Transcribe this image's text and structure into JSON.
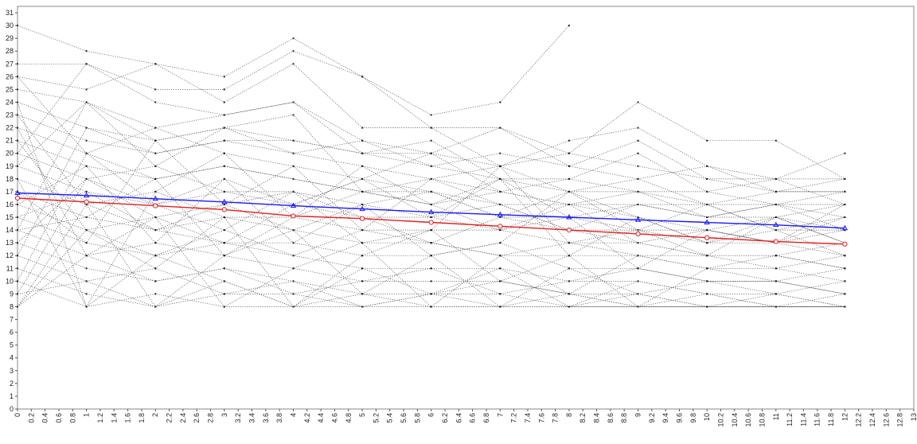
{
  "chart_data": {
    "type": "line",
    "title": "",
    "xlabel": "",
    "ylabel": "",
    "xlim": [
      0,
      13
    ],
    "ylim": [
      0,
      31.5
    ],
    "grid": false,
    "legend": "none",
    "y_ticks": [
      "0",
      "1",
      "2",
      "3",
      "4",
      "5",
      "6",
      "7",
      "8",
      "9",
      "10",
      "11",
      "12",
      "13",
      "14",
      "15",
      "16",
      "17",
      "18",
      "19",
      "20",
      "21",
      "22",
      "23",
      "24",
      "25",
      "26",
      "27",
      "28",
      "29",
      "30",
      "31"
    ],
    "x_ticks": [
      "0",
      "0.2",
      "0.4",
      "0.6",
      "0.8",
      "1",
      "1.2",
      "1.4",
      "1.6",
      "1.8",
      "2",
      "2.2",
      "2.4",
      "2.6",
      "2.8",
      "3",
      "3.2",
      "3.4",
      "3.6",
      "3.8",
      "4",
      "4.2",
      "4.4",
      "4.6",
      "4.8",
      "5",
      "5.2",
      "5.4",
      "5.6",
      "5.8",
      "6",
      "6.2",
      "6.4",
      "6.6",
      "6.8",
      "7",
      "7.2",
      "7.4",
      "7.6",
      "7.8",
      "8",
      "8.2",
      "8.4",
      "8.6",
      "8.8",
      "9",
      "9.2",
      "9.4",
      "9.6",
      "9.8",
      "10",
      "10.2",
      "10.4",
      "10.6",
      "10.8",
      "11",
      "11.2",
      "11.4",
      "11.6",
      "11.8",
      "12",
      "12.2",
      "12.4",
      "12.6",
      "12.8",
      "13"
    ],
    "trend_series": [
      {
        "color": "#1a1aff",
        "marker": "triangle",
        "x": [
          0,
          1,
          2,
          3,
          4,
          5,
          6,
          7,
          8,
          9,
          10,
          11,
          12
        ],
        "y": [
          16.9,
          16.7,
          16.45,
          16.2,
          15.9,
          15.65,
          15.4,
          15.2,
          15.0,
          14.8,
          14.6,
          14.4,
          14.15
        ]
      },
      {
        "color": "#e02020",
        "marker": "circle",
        "x": [
          0,
          1,
          2,
          3,
          4,
          5,
          6,
          7,
          8,
          9,
          10,
          11,
          12
        ],
        "y": [
          16.5,
          16.2,
          15.9,
          15.6,
          15.1,
          14.9,
          14.6,
          14.3,
          14.0,
          13.7,
          13.4,
          13.1,
          12.9
        ]
      }
    ],
    "individual_series": [
      {
        "x": [
          0,
          1,
          2,
          3,
          4,
          5,
          6,
          7,
          8
        ],
        "y": [
          30,
          28,
          27,
          26,
          29,
          26,
          23,
          24,
          30
        ]
      },
      {
        "x": [
          0,
          1,
          2,
          3,
          4,
          5,
          6,
          7,
          8,
          9,
          10,
          11,
          12
        ],
        "y": [
          27,
          27,
          25,
          25,
          28,
          26,
          22,
          22,
          20,
          24,
          21,
          21,
          18
        ]
      },
      {
        "x": [
          0,
          1,
          2,
          3,
          4,
          5,
          6,
          7,
          8,
          9,
          10,
          11,
          12
        ],
        "y": [
          26,
          25,
          27,
          24,
          27,
          22,
          22,
          19,
          21,
          22,
          19,
          18,
          20
        ]
      },
      {
        "x": [
          0,
          1,
          2,
          3,
          4,
          5,
          6,
          7,
          8,
          9,
          10,
          11,
          12
        ],
        "y": [
          25,
          24,
          22,
          23,
          24,
          21,
          20,
          22,
          19,
          21,
          18,
          17,
          18
        ]
      },
      {
        "x": [
          0,
          1,
          2,
          3,
          4,
          5,
          6,
          7,
          8,
          9,
          10,
          11,
          12
        ],
        "y": [
          24,
          22,
          21,
          22,
          21,
          20,
          19,
          18,
          18,
          20,
          17,
          18,
          16
        ]
      },
      {
        "x": [
          0,
          1,
          2,
          3,
          4,
          5,
          6,
          7,
          8,
          9,
          10,
          11,
          12
        ],
        "y": [
          23,
          21,
          20,
          21,
          20,
          19,
          18,
          19,
          17,
          18,
          16,
          17,
          17
        ]
      },
      {
        "x": [
          0,
          1,
          2,
          3,
          4,
          5,
          6,
          7,
          8,
          9,
          10,
          11,
          12
        ],
        "y": [
          22,
          20,
          22,
          20,
          19,
          18,
          20,
          17,
          16,
          17,
          15,
          16,
          15
        ]
      },
      {
        "x": [
          0,
          1,
          2,
          3,
          4,
          5,
          6,
          7,
          8,
          9,
          10,
          11,
          12
        ],
        "y": [
          21,
          19,
          18,
          19,
          18,
          17,
          16,
          18,
          15,
          16,
          16,
          14,
          14
        ]
      },
      {
        "x": [
          0,
          1,
          2,
          3,
          4,
          5,
          6,
          7,
          8,
          9,
          10,
          11,
          12
        ],
        "y": [
          20,
          18,
          19,
          17,
          17,
          16,
          17,
          15,
          17,
          15,
          14,
          15,
          13
        ]
      },
      {
        "x": [
          0,
          1,
          2,
          3,
          4,
          5,
          6,
          7,
          8,
          9,
          10,
          11,
          12
        ],
        "y": [
          19,
          17,
          16,
          18,
          16,
          15,
          15,
          16,
          14,
          14,
          13,
          13,
          12
        ]
      },
      {
        "x": [
          0,
          1,
          2,
          3,
          4,
          5,
          6,
          7,
          8,
          9,
          10,
          11,
          12
        ],
        "y": [
          18,
          16,
          17,
          15,
          15,
          14,
          14,
          14,
          13,
          13,
          12,
          12,
          11
        ]
      },
      {
        "x": [
          0,
          1,
          2,
          3,
          4,
          5,
          6,
          7,
          8,
          9,
          10,
          11,
          12
        ],
        "y": [
          17,
          15,
          14,
          16,
          14,
          13,
          13,
          12,
          12,
          12,
          11,
          11,
          10
        ]
      },
      {
        "x": [
          0,
          1,
          2,
          3,
          4,
          5,
          6,
          7,
          8,
          9,
          10,
          11,
          12
        ],
        "y": [
          16,
          14,
          15,
          13,
          13,
          12,
          12,
          13,
          11,
          11,
          10,
          10,
          9
        ]
      },
      {
        "x": [
          0,
          1,
          2,
          3,
          4,
          5,
          6,
          7,
          8,
          9,
          10,
          11,
          12
        ],
        "y": [
          15,
          13,
          12,
          14,
          12,
          11,
          11,
          11,
          10,
          10,
          9,
          9,
          8
        ]
      },
      {
        "x": [
          0,
          1,
          2,
          3,
          4,
          5,
          6,
          7,
          8,
          9,
          10,
          11,
          12
        ],
        "y": [
          14,
          12,
          13,
          12,
          11,
          10,
          10,
          10,
          9,
          9,
          8,
          8,
          8
        ]
      },
      {
        "x": [
          0,
          1,
          2,
          3,
          4,
          5,
          6,
          7,
          8,
          9,
          10,
          11,
          12
        ],
        "y": [
          13,
          11,
          10,
          11,
          10,
          9,
          9,
          9,
          8,
          8,
          8,
          8,
          8
        ]
      },
      {
        "x": [
          0,
          1,
          2,
          3,
          4,
          5,
          6,
          7,
          8,
          9,
          10,
          11,
          12
        ],
        "y": [
          12,
          10,
          11,
          9,
          9,
          8,
          8,
          8,
          8,
          8,
          8,
          8,
          8
        ]
      },
      {
        "x": [
          0,
          1,
          2,
          3,
          4,
          5,
          6,
          7,
          8,
          9,
          10,
          11,
          12
        ],
        "y": [
          11,
          9,
          8,
          10,
          8,
          8,
          9,
          8,
          9,
          8,
          9,
          8,
          8
        ]
      },
      {
        "x": [
          0,
          1,
          2,
          3,
          4,
          5,
          6,
          7,
          8,
          9,
          10,
          11,
          12
        ],
        "y": [
          10,
          8,
          9,
          8,
          8,
          9,
          8,
          8,
          8,
          9,
          8,
          8,
          9
        ]
      },
      {
        "x": [
          0,
          1,
          2,
          3,
          4,
          5,
          6,
          7,
          8,
          9,
          10,
          11,
          12
        ],
        "y": [
          9,
          10,
          8,
          9,
          10,
          8,
          9,
          10,
          9,
          8,
          8,
          9,
          8
        ]
      },
      {
        "x": [
          0,
          1,
          2,
          3,
          4,
          5,
          6,
          7,
          8,
          9,
          10,
          11,
          12
        ],
        "y": [
          8,
          12,
          10,
          11,
          9,
          10,
          11,
          9,
          10,
          11,
          10,
          10,
          11
        ]
      },
      {
        "x": [
          0,
          1,
          2,
          3,
          4,
          5,
          6,
          7,
          8,
          9,
          10,
          11,
          12
        ],
        "y": [
          8,
          14,
          12,
          13,
          12,
          14,
          13,
          12,
          13,
          12,
          12,
          11,
          12
        ]
      },
      {
        "x": [
          0,
          1,
          2,
          3,
          4,
          5,
          6,
          7,
          8,
          9,
          10,
          11,
          12
        ],
        "y": [
          8,
          16,
          14,
          15,
          14,
          16,
          15,
          14,
          15,
          14,
          14,
          13,
          14
        ]
      },
      {
        "x": [
          0,
          1,
          2,
          3,
          4,
          5,
          6,
          7,
          8,
          9,
          10,
          11,
          12
        ],
        "y": [
          9,
          18,
          16,
          17,
          16,
          18,
          17,
          16,
          16,
          16,
          15,
          15,
          16
        ]
      },
      {
        "x": [
          0,
          1,
          2,
          3,
          4,
          5,
          6,
          7,
          8,
          9,
          10,
          11,
          12
        ],
        "y": [
          10,
          20,
          18,
          19,
          18,
          17,
          18,
          17,
          18,
          17,
          17,
          16,
          17
        ]
      },
      {
        "x": [
          0,
          1,
          2,
          3,
          4,
          5,
          6,
          7,
          8,
          9,
          10,
          11,
          12
        ],
        "y": [
          12,
          22,
          20,
          21,
          21,
          20,
          20,
          19,
          20,
          19,
          18,
          18,
          18
        ]
      },
      {
        "x": [
          0,
          1,
          2,
          3,
          4,
          5,
          6,
          7,
          8,
          9,
          10,
          11,
          12
        ],
        "y": [
          14,
          24,
          21,
          22,
          20,
          21,
          19,
          20,
          19,
          18,
          19,
          17,
          17
        ]
      },
      {
        "x": [
          0,
          1,
          2,
          3,
          4,
          5,
          6,
          7,
          8,
          9,
          10,
          11,
          12
        ],
        "y": [
          20,
          27,
          24,
          23,
          24,
          20,
          21,
          18,
          17,
          17,
          16,
          16,
          16
        ]
      },
      {
        "x": [
          0,
          1,
          2,
          3,
          4,
          5,
          6,
          7,
          8,
          9,
          10,
          11,
          12
        ],
        "y": [
          24,
          8,
          12,
          10,
          8,
          11,
          9,
          11,
          8,
          10,
          9,
          8,
          8
        ]
      },
      {
        "x": [
          0,
          1,
          2,
          3,
          4,
          5,
          6,
          7,
          8,
          9,
          10,
          11,
          12
        ],
        "y": [
          23,
          16,
          8,
          12,
          14,
          9,
          12,
          8,
          11,
          9,
          10,
          9,
          10
        ]
      },
      {
        "x": [
          0,
          1,
          2,
          3,
          4,
          5,
          6,
          7,
          8,
          9,
          10,
          11,
          12
        ],
        "y": [
          22,
          12,
          15,
          8,
          11,
          13,
          8,
          12,
          9,
          12,
          11,
          10,
          9
        ]
      },
      {
        "x": [
          0,
          1,
          2,
          3,
          4,
          5,
          6,
          7,
          8,
          9,
          10,
          11,
          12
        ],
        "y": [
          21,
          14,
          11,
          15,
          8,
          12,
          14,
          10,
          12,
          8,
          11,
          12,
          11
        ]
      },
      {
        "x": [
          0,
          1,
          2,
          3,
          4,
          5,
          6,
          7,
          8,
          9,
          10,
          11,
          12
        ],
        "y": [
          26,
          20,
          16,
          14,
          17,
          15,
          13,
          15,
          14,
          13,
          12,
          12,
          13
        ]
      },
      {
        "x": [
          0,
          1,
          2,
          3,
          4,
          5,
          6,
          7,
          8,
          9,
          10,
          11,
          12
        ],
        "y": [
          19,
          24,
          19,
          22,
          23,
          17,
          16,
          14,
          16,
          15,
          13,
          14,
          12
        ]
      },
      {
        "x": [
          0,
          1,
          2,
          3,
          4,
          5,
          6,
          7,
          8,
          9,
          10,
          11,
          12
        ],
        "y": [
          18,
          8,
          17,
          20,
          15,
          19,
          16,
          17,
          16,
          13,
          14,
          13,
          15
        ]
      },
      {
        "x": [
          0,
          1,
          2,
          3,
          4,
          5,
          6,
          7,
          8,
          9,
          10,
          11,
          12
        ],
        "y": [
          17,
          13,
          21,
          16,
          19,
          14,
          18,
          16,
          14,
          16,
          15,
          16,
          14
        ]
      },
      {
        "x": [
          0,
          1,
          2,
          3,
          4,
          5,
          6,
          7,
          8,
          9,
          10,
          11,
          12
        ],
        "y": [
          16,
          19,
          13,
          18,
          13,
          16,
          12,
          13,
          17,
          14,
          16,
          14,
          15
        ]
      },
      {
        "x": [
          0,
          1,
          2,
          3,
          4,
          5,
          6,
          7,
          8,
          9,
          10,
          11,
          12
        ],
        "y": [
          15,
          17,
          14,
          13,
          16,
          18,
          15,
          18,
          12,
          15,
          13,
          15,
          13
        ]
      },
      {
        "x": [
          0,
          1,
          2,
          3,
          4,
          5,
          6,
          7,
          8,
          9,
          10,
          11,
          12
        ],
        "y": [
          14,
          15,
          18,
          12,
          15,
          17,
          17,
          15,
          15,
          11,
          14,
          13,
          16
        ]
      },
      {
        "x": [
          0,
          1,
          2,
          3,
          4,
          5,
          6,
          7,
          8,
          9,
          10,
          11,
          12
        ],
        "y": [
          13,
          18,
          15,
          16,
          17,
          13,
          14,
          19,
          13,
          14,
          12,
          15,
          14
        ]
      }
    ]
  }
}
